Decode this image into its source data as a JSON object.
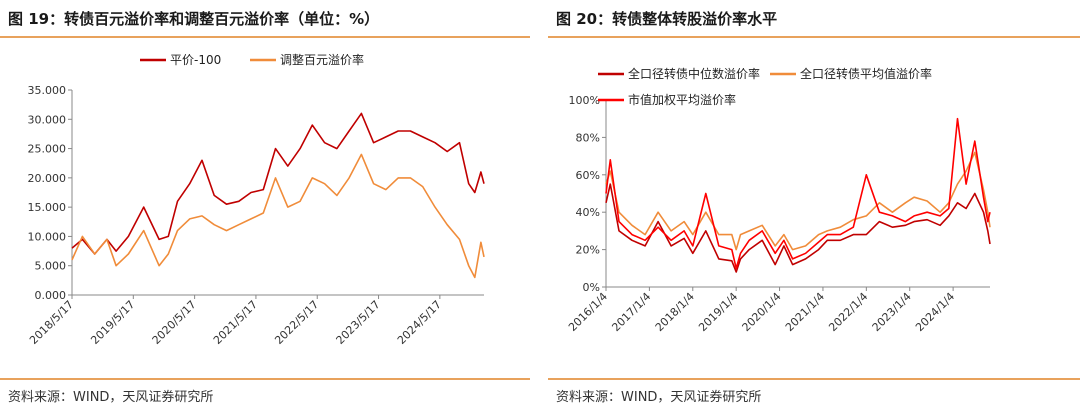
{
  "left_panel": {
    "title": "图 19：转债百元溢价率和调整百元溢价率（单位：%）",
    "source": "资料来源：WIND，天风证券研究所"
  },
  "right_panel": {
    "title": "图 20：转债整体转股溢价率水平",
    "source": "资料来源：WIND，天风证券研究所"
  },
  "chart_data": [
    {
      "type": "line",
      "title": "",
      "xlabel": "",
      "ylabel": "",
      "x_tick_labels": [
        "2018/5/17",
        "2019/5/17",
        "2020/5/17",
        "2021/5/17",
        "2022/5/17",
        "2023/5/17",
        "2024/5/17"
      ],
      "y_tick_labels": [
        "0.000",
        "5.000",
        "10.000",
        "15.000",
        "20.000",
        "25.000",
        "30.000",
        "35.000"
      ],
      "ylim": [
        0,
        35
      ],
      "xlim": [
        2018.38,
        2025.1
      ],
      "grid": false,
      "legend_position": "top-center",
      "series": [
        {
          "name": "平价-100",
          "color": "#c00000",
          "x": [
            2018.38,
            2018.55,
            2018.75,
            2018.95,
            2019.1,
            2019.3,
            2019.55,
            2019.8,
            2019.95,
            2020.1,
            2020.3,
            2020.5,
            2020.7,
            2020.9,
            2021.1,
            2021.3,
            2021.5,
            2021.7,
            2021.9,
            2022.1,
            2022.3,
            2022.5,
            2022.7,
            2022.9,
            2023.1,
            2023.3,
            2023.5,
            2023.7,
            2023.9,
            2024.1,
            2024.3,
            2024.5,
            2024.7,
            2024.85,
            2024.95,
            2025.05,
            2025.1
          ],
          "y": [
            8,
            9.5,
            7,
            9.5,
            7.5,
            10,
            15,
            9.5,
            10,
            16,
            19,
            23,
            17,
            15.5,
            16,
            17.5,
            18,
            25,
            22,
            25,
            29,
            26,
            25,
            28,
            31,
            26,
            27,
            28,
            28,
            27,
            26,
            24.5,
            26,
            19,
            17.5,
            21,
            19
          ]
        },
        {
          "name": "调整百元溢价率",
          "color": "#f08c3a",
          "x": [
            2018.38,
            2018.55,
            2018.75,
            2018.95,
            2019.1,
            2019.3,
            2019.55,
            2019.8,
            2019.95,
            2020.1,
            2020.3,
            2020.5,
            2020.7,
            2020.9,
            2021.1,
            2021.3,
            2021.5,
            2021.7,
            2021.9,
            2022.1,
            2022.3,
            2022.5,
            2022.7,
            2022.9,
            2023.1,
            2023.3,
            2023.5,
            2023.7,
            2023.9,
            2024.1,
            2024.3,
            2024.5,
            2024.7,
            2024.85,
            2024.95,
            2025.05,
            2025.1
          ],
          "y": [
            6,
            10,
            7,
            9.5,
            5,
            7,
            11,
            5,
            7,
            11,
            13,
            13.5,
            12,
            11,
            12,
            13,
            14,
            20,
            15,
            16,
            20,
            19,
            17,
            20,
            24,
            19,
            18,
            20,
            20,
            18.5,
            15,
            12,
            9.5,
            5,
            3,
            9,
            6.5
          ]
        }
      ]
    },
    {
      "type": "line",
      "title": "",
      "xlabel": "",
      "ylabel": "",
      "x_tick_labels": [
        "2016/1/4",
        "2017/1/4",
        "2018/1/4",
        "2019/1/4",
        "2020/1/4",
        "2021/1/4",
        "2022/1/4",
        "2023/1/4",
        "2024/1/4"
      ],
      "y_tick_labels": [
        "0%",
        "20%",
        "40%",
        "60%",
        "80%",
        "100%"
      ],
      "ylim": [
        0,
        100
      ],
      "xlim": [
        2016.0,
        2024.85
      ],
      "grid": false,
      "legend_position": "top-left",
      "series": [
        {
          "name": "全口径转债中位数溢价率",
          "color": "#c00000",
          "x": [
            2016.0,
            2016.1,
            2016.3,
            2016.6,
            2016.9,
            2017.2,
            2017.5,
            2017.8,
            2018.0,
            2018.3,
            2018.6,
            2018.9,
            2019.0,
            2019.1,
            2019.3,
            2019.6,
            2019.9,
            2020.1,
            2020.3,
            2020.6,
            2020.9,
            2021.1,
            2021.4,
            2021.7,
            2022.0,
            2022.3,
            2022.6,
            2022.9,
            2023.1,
            2023.4,
            2023.7,
            2023.9,
            2024.1,
            2024.3,
            2024.5,
            2024.7,
            2024.8,
            2024.85
          ],
          "y": [
            45,
            55,
            30,
            25,
            22,
            35,
            22,
            26,
            18,
            30,
            15,
            14,
            8,
            15,
            20,
            25,
            12,
            22,
            12,
            15,
            20,
            25,
            25,
            28,
            28,
            35,
            32,
            33,
            35,
            36,
            33,
            38,
            45,
            42,
            50,
            40,
            30,
            23
          ]
        },
        {
          "name": "全口径转债平均值溢价率",
          "color": "#f08c3a",
          "x": [
            2016.0,
            2016.1,
            2016.3,
            2016.6,
            2016.9,
            2017.2,
            2017.5,
            2017.8,
            2018.0,
            2018.3,
            2018.6,
            2018.9,
            2019.0,
            2019.1,
            2019.3,
            2019.6,
            2019.9,
            2020.1,
            2020.3,
            2020.6,
            2020.9,
            2021.1,
            2021.4,
            2021.7,
            2022.0,
            2022.3,
            2022.6,
            2022.9,
            2023.1,
            2023.4,
            2023.7,
            2023.9,
            2024.1,
            2024.3,
            2024.5,
            2024.7,
            2024.8,
            2024.85
          ],
          "y": [
            55,
            62,
            40,
            33,
            28,
            40,
            30,
            35,
            28,
            40,
            28,
            28,
            20,
            28,
            30,
            33,
            22,
            28,
            20,
            22,
            28,
            30,
            32,
            36,
            38,
            45,
            40,
            45,
            48,
            46,
            40,
            45,
            55,
            62,
            72,
            52,
            40,
            32
          ]
        },
        {
          "name": "市值加权平均溢价率",
          "color": "#ff0000",
          "x": [
            2016.0,
            2016.1,
            2016.3,
            2016.6,
            2016.9,
            2017.2,
            2017.5,
            2017.8,
            2018.0,
            2018.3,
            2018.6,
            2018.9,
            2019.0,
            2019.1,
            2019.3,
            2019.6,
            2019.9,
            2020.1,
            2020.3,
            2020.6,
            2020.9,
            2021.1,
            2021.4,
            2021.7,
            2022.0,
            2022.3,
            2022.6,
            2022.9,
            2023.1,
            2023.4,
            2023.7,
            2023.9,
            2024.1,
            2024.3,
            2024.5,
            2024.7,
            2024.8,
            2024.85
          ],
          "y": [
            50,
            68,
            35,
            28,
            25,
            32,
            25,
            30,
            22,
            50,
            22,
            20,
            10,
            18,
            25,
            30,
            18,
            25,
            15,
            18,
            24,
            28,
            28,
            32,
            60,
            40,
            38,
            35,
            38,
            40,
            38,
            42,
            90,
            55,
            78,
            48,
            35,
            40
          ]
        }
      ]
    }
  ]
}
